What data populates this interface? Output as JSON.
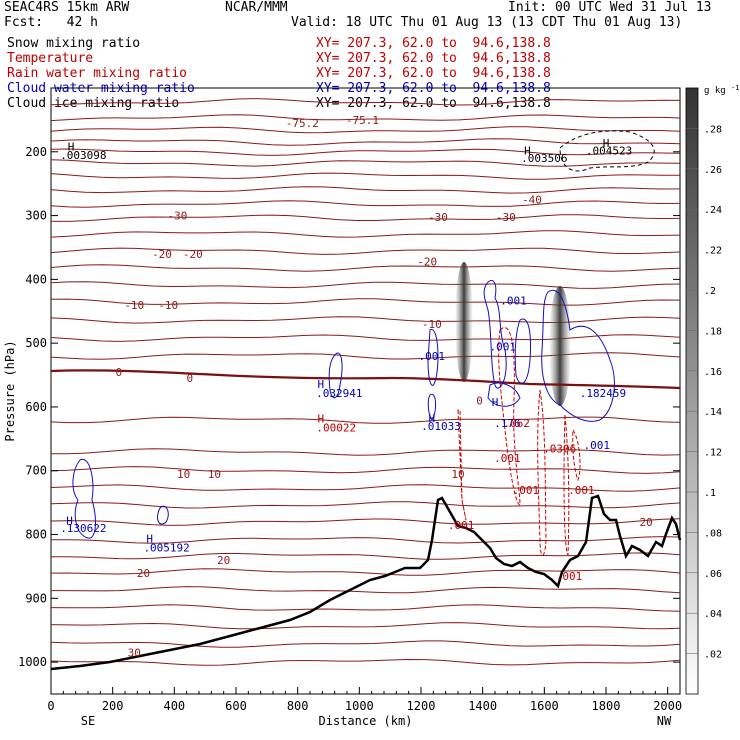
{
  "header": {
    "model": "SEAC4RS 15km ARW",
    "org": "NCAR/MMM",
    "init": "Init: 00 UTC Wed 31 Jul 13",
    "fcst": "Fcst:   42 h",
    "valid": "Valid: 18 UTC Thu 01 Aug 13 (13 CDT Thu 01 Aug 13)"
  },
  "fields": [
    {
      "name": "Snow mixing ratio",
      "xy": "XY= 207.3, 62.0 to  94.6,138.8",
      "color": "#000000"
    },
    {
      "name": "Temperature",
      "xy": "XY= 207.3, 62.0 to  94.6,138.8",
      "color": "#c00000"
    },
    {
      "name": "Rain water mixing ratio",
      "xy": "XY= 207.3, 62.0 to  94.6,138.8",
      "color": "#c00000"
    },
    {
      "name": "Cloud water mixing ratio",
      "xy": "XY= 207.3, 62.0 to  94.6,138.8",
      "color": "#0000c0"
    },
    {
      "name": "Cloud ice mixing ratio",
      "xy": "XY= 207.3, 62.0 to  94.6,138.8",
      "color": "#000000"
    }
  ],
  "chart_data": {
    "type": "cross-section",
    "xlabel": "Distance (km)",
    "ylabel": "Pressure (hPa)",
    "xlim": [
      0,
      2040
    ],
    "ylim": [
      1050,
      100
    ],
    "x_ticks": [
      0,
      200,
      400,
      600,
      800,
      1000,
      1200,
      1400,
      1600,
      1800,
      2000
    ],
    "y_ticks": [
      200,
      300,
      400,
      500,
      600,
      700,
      800,
      900,
      1000
    ],
    "endpoint_left": "SE",
    "endpoint_right": "NW",
    "colorbar": {
      "unit": "g kg",
      "unit_exp": "-1",
      "min": 0,
      "max": 0.3,
      "labels": [
        ".02",
        ".04",
        ".06",
        ".08",
        ".1",
        ".12",
        ".14",
        ".16",
        ".18",
        ".2",
        ".22",
        ".24",
        ".26",
        ".28"
      ]
    },
    "freezing_level_label": "0",
    "temperature_labels": [
      {
        "text": "-75.2",
        "x": 815,
        "p": 155
      },
      {
        "text": "-75.1",
        "x": 1010,
        "p": 150
      },
      {
        "text": "-40",
        "x": 1560,
        "p": 275
      },
      {
        "text": "-30",
        "x": 410,
        "p": 300
      },
      {
        "text": "-30",
        "x": 1255,
        "p": 302
      },
      {
        "text": "-30",
        "x": 1475,
        "p": 302
      },
      {
        "text": "-20",
        "x": 360,
        "p": 360
      },
      {
        "text": "-20",
        "x": 460,
        "p": 360
      },
      {
        "text": "-20",
        "x": 1220,
        "p": 372
      },
      {
        "text": "-10",
        "x": 270,
        "p": 440
      },
      {
        "text": "-10",
        "x": 380,
        "p": 440
      },
      {
        "text": "-10",
        "x": 1235,
        "p": 470
      },
      {
        "text": "0",
        "x": 220,
        "p": 545
      },
      {
        "text": "0",
        "x": 450,
        "p": 555
      },
      {
        "text": "0",
        "x": 1390,
        "p": 590
      },
      {
        "text": "10",
        "x": 430,
        "p": 705
      },
      {
        "text": "10",
        "x": 530,
        "p": 705
      },
      {
        "text": "10",
        "x": 1320,
        "p": 705
      },
      {
        "text": "20",
        "x": 1930,
        "p": 780
      },
      {
        "text": "20",
        "x": 560,
        "p": 840
      },
      {
        "text": "20",
        "x": 300,
        "p": 860
      },
      {
        "text": "30",
        "x": 270,
        "p": 985
      }
    ],
    "cloud_labels": [
      {
        "text": ".001",
        "x": 1500,
        "p": 433,
        "color": "#0000c0"
      },
      {
        "text": ".001",
        "x": 1235,
        "p": 520,
        "color": "#0000c0"
      },
      {
        "text": ".001",
        "x": 1465,
        "p": 505,
        "color": "#0000c0"
      },
      {
        "text": ".032941",
        "x": 935,
        "p": 578,
        "color": "#0000c0"
      },
      {
        "text": ".01033",
        "x": 1265,
        "p": 630,
        "color": "#0000c0"
      },
      {
        "text": ".176",
        "x": 1480,
        "p": 625,
        "color": "#0000c0"
      },
      {
        "text": ".182459",
        "x": 1790,
        "p": 578,
        "color": "#0000c0"
      },
      {
        "text": ".001",
        "x": 1770,
        "p": 660,
        "color": "#0000c0"
      },
      {
        "text": ".130622",
        "x": 105,
        "p": 790,
        "color": "#0000c0"
      },
      {
        "text": ".005192",
        "x": 375,
        "p": 820,
        "color": "#0000c0"
      },
      {
        "text": ".00022",
        "x": 925,
        "p": 632,
        "color": "#c00000"
      },
      {
        "text": ".062",
        "x": 1510,
        "p": 625,
        "color": "#c00000"
      },
      {
        "text": ".0306",
        "x": 1650,
        "p": 665,
        "color": "#c00000"
      },
      {
        "text": ".001",
        "x": 1480,
        "p": 680,
        "color": "#c00000"
      },
      {
        "text": ".001",
        "x": 1540,
        "p": 730,
        "color": "#c00000"
      },
      {
        "text": ".001",
        "x": 1720,
        "p": 730,
        "color": "#c00000"
      },
      {
        "text": ".001",
        "x": 1330,
        "p": 785,
        "color": "#c00000"
      },
      {
        "text": ".001",
        "x": 1680,
        "p": 865,
        "color": "#c00000"
      },
      {
        "text": ".003098",
        "x": 105,
        "p": 205,
        "color": "#000000"
      },
      {
        "text": ".003506",
        "x": 1600,
        "p": 210,
        "color": "#000000"
      },
      {
        "text": ".004523",
        "x": 1810,
        "p": 198,
        "color": "#000000"
      }
    ],
    "h_marks": [
      {
        "x": 65,
        "p": 192,
        "color": "#000000"
      },
      {
        "x": 1545,
        "p": 198,
        "color": "#000000"
      },
      {
        "x": 1800,
        "p": 186,
        "color": "#000000"
      },
      {
        "x": 875,
        "p": 564,
        "color": "#0000c0"
      },
      {
        "x": 875,
        "p": 618,
        "color": "#c00000"
      },
      {
        "x": 1235,
        "p": 617,
        "color": "#0000c0"
      },
      {
        "x": 1440,
        "p": 592,
        "color": "#0000c0"
      },
      {
        "x": 60,
        "p": 778,
        "color": "#0000c0"
      },
      {
        "x": 320,
        "p": 806,
        "color": "#0000c0"
      }
    ]
  }
}
